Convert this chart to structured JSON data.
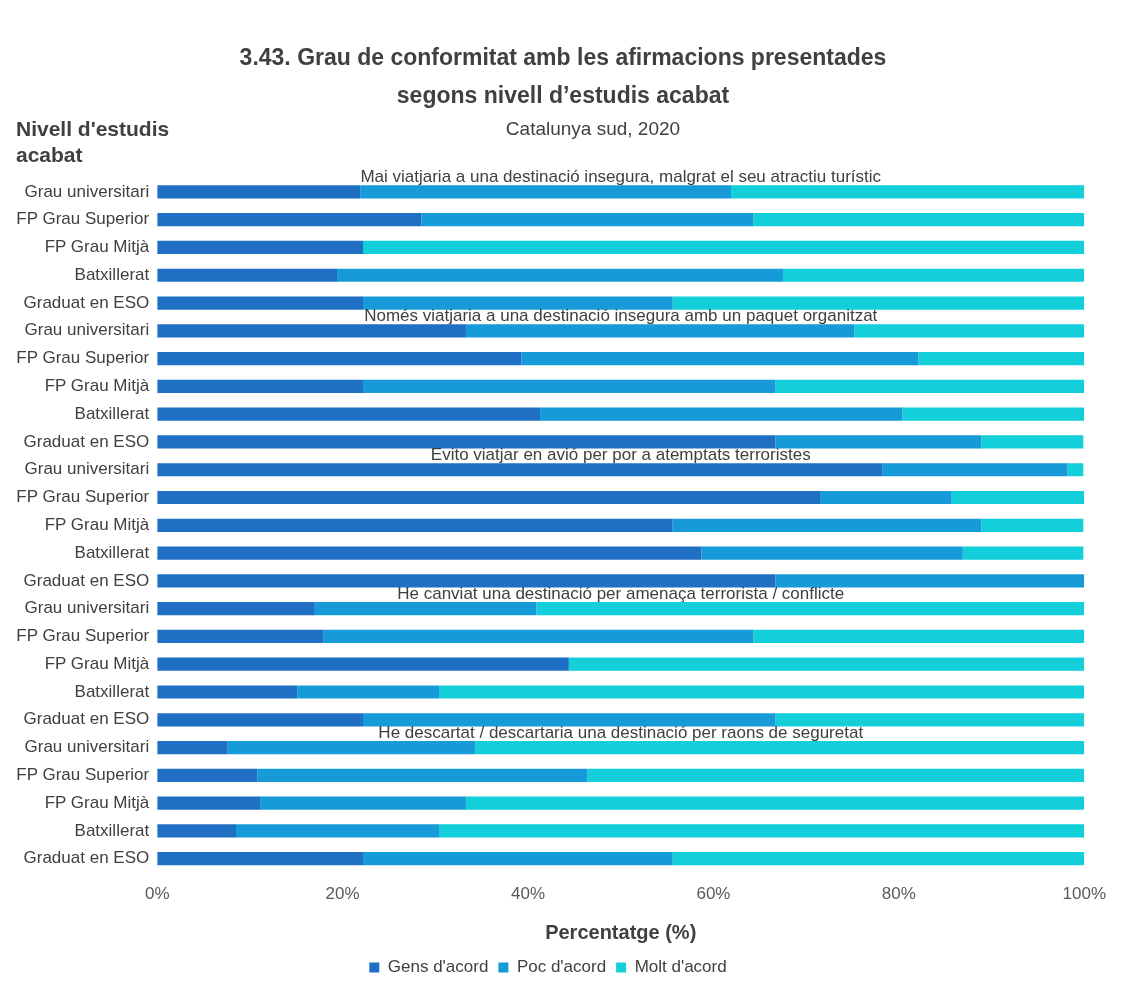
{
  "chart_data": {
    "type": "bar",
    "orientation": "horizontal",
    "stacked": true,
    "title": "3.43. Grau de conformitat amb les afirmacions presentades segons nivell d’estudis acabat",
    "subtitle": "Catalunya sud, 2020",
    "ylabel": "Nivell d'estudis acabat",
    "xlabel": "Percentatge (%)",
    "annotations": [
      "Mai viatjaria a una destinació insegura, malgrat el seu atractiu turístic",
      "Només viatjaria a una destinació insegura amb un paquet organitzat",
      "Evito viatjar en avió per por a atemptats terroristes",
      "He canviat una destinació per amenaça terrorista / conflicte",
      "He descartat / descartaria una destinació per raons de seguretat"
    ],
    "categories": [
      "Grau universitari",
      "FP Grau Superior",
      "FP Grau Mitjà",
      "Batxillerat",
      "Graduat en ESO",
      "Grau universitari",
      "FP Grau Superior",
      "FP Grau Mitjà",
      "Batxillerat",
      "Graduat en ESO",
      "Grau universitari",
      "FP Grau Superior",
      "FP Grau Mitjà",
      "Batxillerat",
      "Graduat en ESO",
      "Grau universitari",
      "FP Grau Superior",
      "FP Grau Mitjà",
      "Batxillerat",
      "Graduat en ESO",
      "Grau universitari",
      "FP Grau Superior",
      "FP Grau Mitjà",
      "Batxillerat",
      "Graduat en ESO"
    ],
    "series": [
      {
        "name": "Gens d'acord",
        "color": "#1f6fc5",
        "values": [
          21.9,
          28.5,
          22.2,
          19.4,
          22.2,
          33.3,
          39.3,
          22.2,
          41.3,
          66.7,
          78.2,
          71.5,
          55.6,
          58.7,
          66.7,
          17.0,
          17.9,
          44.4,
          15.1,
          22.2,
          7.6,
          10.8,
          11.1,
          8.5,
          22.2
        ]
      },
      {
        "name": "Poc d'acord",
        "color": "#169bd8",
        "values": [
          40.0,
          35.8,
          0,
          48.1,
          33.4,
          41.9,
          42.8,
          44.5,
          39.1,
          22.2,
          20.0,
          14.2,
          33.3,
          28.2,
          33.3,
          23.9,
          46.4,
          0,
          15.3,
          44.5,
          26.7,
          35.6,
          22.2,
          21.9,
          33.4
        ]
      },
      {
        "name": "Molt d'acord",
        "color": "#12cfda",
        "values": [
          38.1,
          35.7,
          77.8,
          32.5,
          44.4,
          24.8,
          17.9,
          33.3,
          19.6,
          11.0,
          1.7,
          14.3,
          11.0,
          13.0,
          0,
          59.1,
          35.7,
          55.6,
          69.6,
          33.3,
          65.7,
          53.6,
          66.7,
          69.6,
          44.4
        ]
      }
    ],
    "xlim": [
      0,
      100
    ],
    "xticks": [
      {
        "value": 0,
        "label": "0%"
      },
      {
        "value": 20,
        "label": "20%"
      },
      {
        "value": 40,
        "label": "40%"
      },
      {
        "value": 60,
        "label": "60%"
      },
      {
        "value": 80,
        "label": "80%"
      },
      {
        "value": 100,
        "label": "100%"
      }
    ],
    "grid": false,
    "legend": "bottom"
  }
}
